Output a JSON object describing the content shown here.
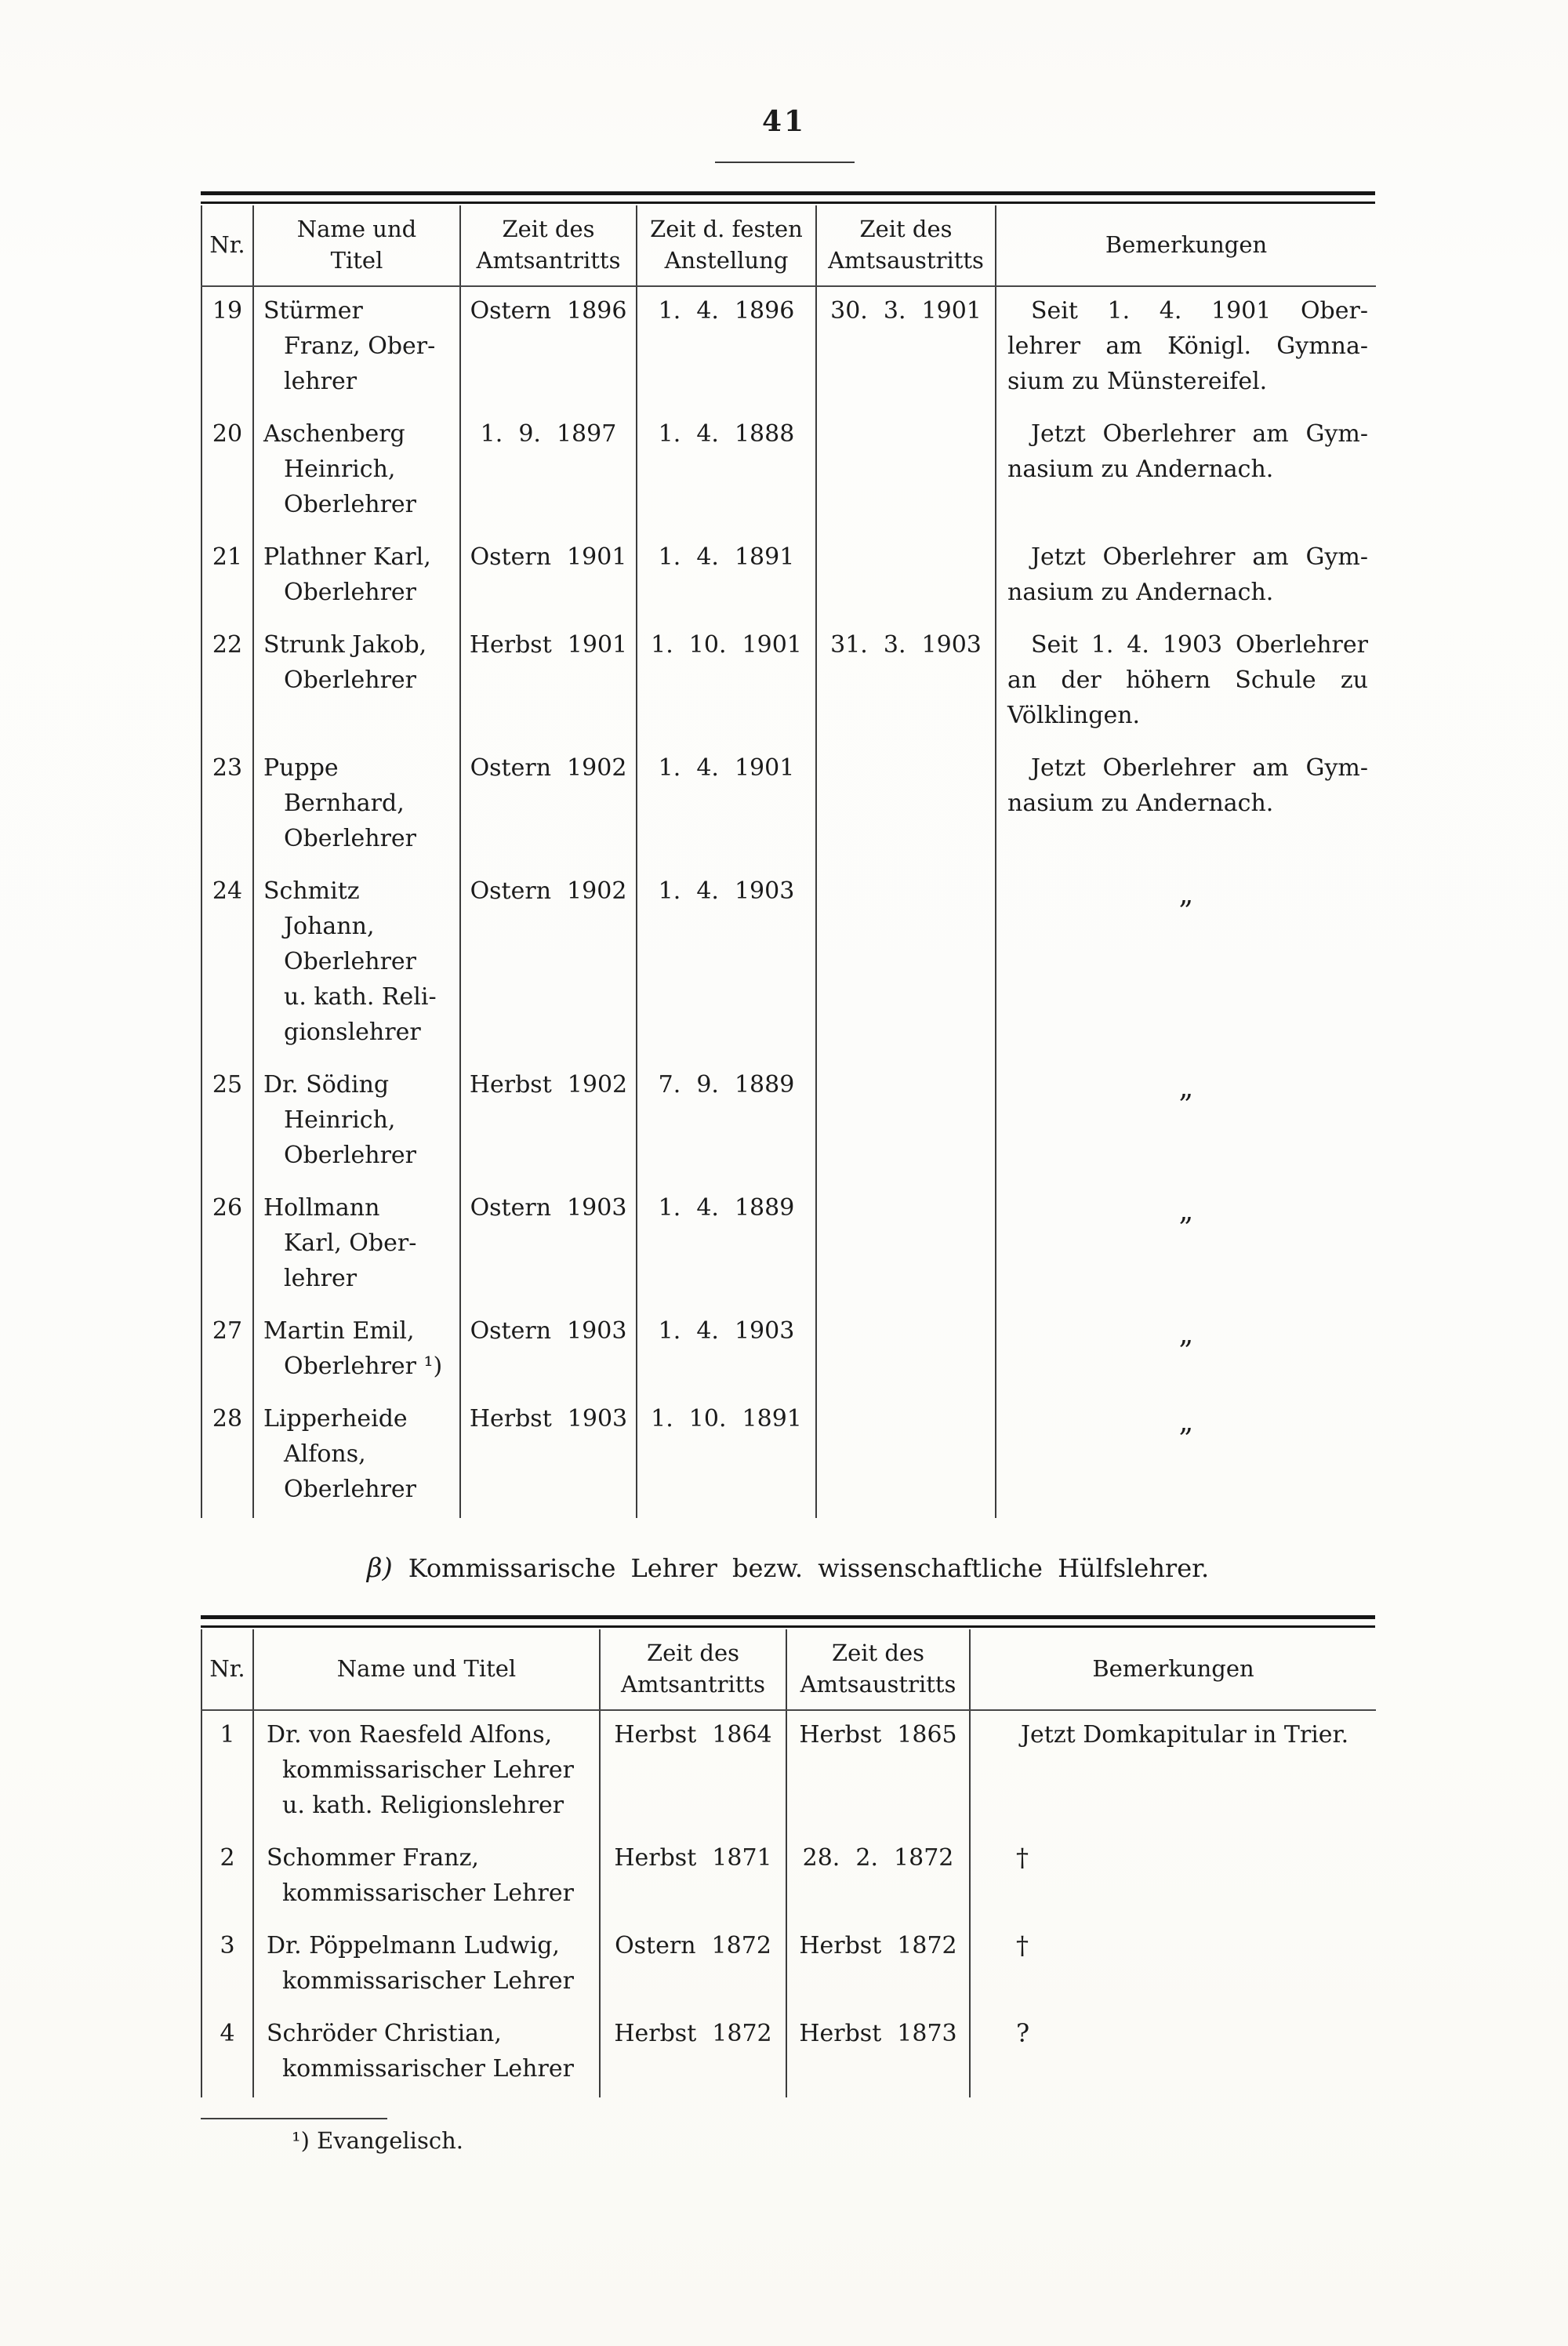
{
  "colors": {
    "ink": "#1b1b1b",
    "paper": "#fcfcf9"
  },
  "page": {
    "number": "41"
  },
  "table_a": {
    "headers": {
      "nr": "Nr.",
      "name": "Name und\nTitel",
      "antritt": "Zeit des\nAmtsantritts",
      "anstellung": "Zeit d. festen\nAnstellung",
      "austritt": "Zeit des\nAmtsaustritts",
      "bemerkungen": "Bemerkungen"
    },
    "rows": [
      {
        "nr": "19",
        "name": [
          "Stürmer",
          "Franz, Ober-",
          "lehrer"
        ],
        "antritt": "Ostern 1896",
        "anstellung": "1. 4. 1896",
        "austritt": "30. 3. 1901",
        "bem": [
          "Seit 1. 4. 1901 Ober-",
          "lehrer am Königl. Gymna-",
          "sium zu Münstereifel."
        ]
      },
      {
        "nr": "20",
        "name": [
          "Aschenberg",
          "Heinrich,",
          "Oberlehrer"
        ],
        "antritt": "1. 9. 1897",
        "anstellung": "1. 4. 1888",
        "austritt": "",
        "bem": [
          "Jetzt Oberlehrer am Gym-",
          "nasium zu Andernach."
        ]
      },
      {
        "nr": "21",
        "name": [
          "Plathner Karl,",
          "Oberlehrer"
        ],
        "antritt": "Ostern 1901",
        "anstellung": "1. 4. 1891",
        "austritt": "",
        "bem": [
          "Jetzt Oberlehrer am Gym-",
          "nasium zu Andernach."
        ]
      },
      {
        "nr": "22",
        "name": [
          "Strunk Jakob,",
          "Oberlehrer"
        ],
        "antritt": "Herbst 1901",
        "anstellung": "1. 10. 1901",
        "austritt": "31. 3. 1903",
        "bem": [
          "Seit 1. 4. 1903 Oberlehrer",
          "an der höhern Schule zu",
          "Völklingen."
        ]
      },
      {
        "nr": "23",
        "name": [
          "Puppe",
          "Bernhard,",
          "Oberlehrer"
        ],
        "antritt": "Ostern 1902",
        "anstellung": "1. 4. 1901",
        "austritt": "",
        "bem": [
          "Jetzt Oberlehrer am Gym-",
          "nasium zu Andernach."
        ]
      },
      {
        "nr": "24",
        "name": [
          "Schmitz",
          "Johann,",
          "Oberlehrer",
          "u. kath. Reli-",
          "gionslehrer"
        ],
        "antritt": "Ostern 1902",
        "anstellung": "1. 4. 1903",
        "austritt": "",
        "ditto": "„"
      },
      {
        "nr": "25",
        "name": [
          "Dr. Söding",
          "Heinrich,",
          "Oberlehrer"
        ],
        "antritt": "Herbst 1902",
        "anstellung": "7. 9. 1889",
        "austritt": "",
        "ditto": "„"
      },
      {
        "nr": "26",
        "name": [
          "Hollmann",
          "Karl, Ober-",
          "lehrer"
        ],
        "antritt": "Ostern 1903",
        "anstellung": "1. 4. 1889",
        "austritt": "",
        "ditto": "„"
      },
      {
        "nr": "27",
        "name": [
          "Martin Emil,",
          "Oberlehrer ¹)"
        ],
        "antritt": "Ostern 1903",
        "anstellung": "1. 4. 1903",
        "austritt": "",
        "ditto": "„"
      },
      {
        "nr": "28",
        "name": [
          "Lipperheide",
          "Alfons,",
          "Oberlehrer"
        ],
        "antritt": "Herbst 1903",
        "anstellung": "1. 10. 1891",
        "austritt": "",
        "ditto": "„"
      }
    ]
  },
  "section_b": {
    "marker": "β)",
    "title": "Kommissarische Lehrer bezw. wissenschaftliche Hülfslehrer."
  },
  "table_b": {
    "headers": {
      "nr": "Nr.",
      "name": "Name und Titel",
      "antritt": "Zeit des\nAmtsantritts",
      "austritt": "Zeit des\nAmtsaustritts",
      "bemerkungen": "Bemerkungen"
    },
    "rows": [
      {
        "nr": "1",
        "name": [
          "Dr. von Raesfeld Alfons,",
          "kommissarischer Lehrer",
          "u. kath. Religionslehrer"
        ],
        "antritt": "Herbst 1864",
        "austritt": "Herbst 1865",
        "bem": [
          "Jetzt Domkapitular in Trier."
        ]
      },
      {
        "nr": "2",
        "name": [
          "Schommer Franz,",
          "kommissarischer Lehrer"
        ],
        "antritt": "Herbst 1871",
        "austritt": "28. 2. 1872",
        "symbol": "†"
      },
      {
        "nr": "3",
        "name": [
          "Dr. Pöppelmann Ludwig,",
          "kommissarischer Lehrer"
        ],
        "antritt": "Ostern 1872",
        "austritt": "Herbst 1872",
        "symbol": "†"
      },
      {
        "nr": "4",
        "name": [
          "Schröder Christian,",
          "kommissarischer Lehrer"
        ],
        "antritt": "Herbst 1872",
        "austritt": "Herbst 1873",
        "symbol": "?"
      }
    ]
  },
  "footnote": {
    "text": "¹) Evangelisch."
  }
}
